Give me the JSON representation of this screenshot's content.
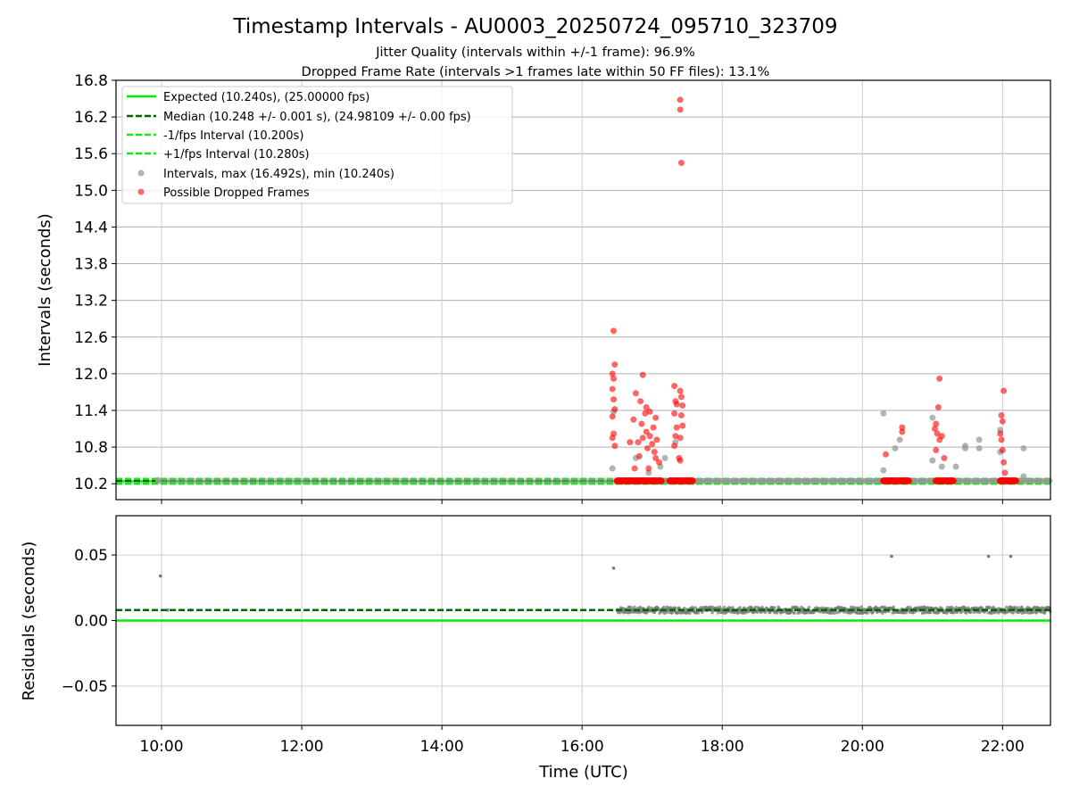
{
  "figure": {
    "title": "Timestamp Intervals - AU0003_20250724_095710_323709",
    "subtitle_1": "Jitter Quality (intervals within +/-1 frame): 96.9%",
    "subtitle_2": "Dropped Frame Rate (intervals >1 frames late within 50 FF files): 13.1%"
  },
  "colors": {
    "expected": "#00ee00",
    "median": "#006400",
    "bounds": "#22dd22",
    "intervals": "#999999",
    "dropped": "#ff0000",
    "residuals": "#777777",
    "grid": "#b0b0b0"
  },
  "chart_data": [
    {
      "type": "scatter",
      "panel": "top",
      "ylabel": "Intervals (seconds)",
      "xlabel": "",
      "xlim": [
        "09:21",
        "22:41"
      ],
      "ylim": [
        9.94,
        16.8
      ],
      "yticks": [
        10.2,
        10.8,
        11.4,
        12.0,
        12.6,
        13.2,
        13.8,
        14.4,
        15.0,
        15.6,
        16.2,
        16.8
      ],
      "ytick_labels": [
        "10.2",
        "10.8",
        "11.4",
        "12.0",
        "12.6",
        "13.2",
        "13.8",
        "14.4",
        "15.0",
        "15.6",
        "16.2",
        "16.8"
      ],
      "xticks": [
        "10:00",
        "12:00",
        "14:00",
        "16:00",
        "18:00",
        "20:00",
        "22:00"
      ],
      "grid": true,
      "legend_position": "top-left",
      "legend": [
        "Expected (10.240s), (25.00000 fps)",
        "Median (10.248 +/- 0.001 s), (24.98109 +/- 0.00 fps)",
        "-1/fps Interval (10.200s)",
        "+1/fps Interval (10.280s)",
        "Intervals, max (16.492s), min (10.240s)",
        "Possible Dropped Frames"
      ],
      "lines": [
        {
          "name": "Expected",
          "y": 10.24,
          "style": "solid"
        },
        {
          "name": "Median",
          "y": 10.248,
          "style": "dashed"
        },
        {
          "name": "-1/fps Interval",
          "y": 10.2,
          "style": "dashed"
        },
        {
          "name": "+1/fps Interval",
          "y": 10.28,
          "style": "dashed"
        }
      ],
      "baseline_series": {
        "name": "Intervals",
        "value": 10.248,
        "ranges": [
          [
            "09:57",
            "16:30"
          ],
          [
            "16:30",
            "22:41"
          ]
        ]
      },
      "dropped_baseline_ranges": [
        [
          "16:30",
          "17:08"
        ],
        [
          "17:15",
          "17:35"
        ],
        [
          "20:18",
          "20:40"
        ],
        [
          "21:03",
          "21:18"
        ],
        [
          "21:58",
          "22:12"
        ]
      ],
      "intervals": [
        [
          "09:57",
          10.26
        ],
        [
          "16:26",
          10.45
        ],
        [
          "16:27",
          11.38
        ],
        [
          "16:46",
          10.62
        ],
        [
          "16:57",
          10.38
        ],
        [
          "17:07",
          10.48
        ],
        [
          "17:11",
          10.62
        ],
        [
          "17:20",
          10.88
        ],
        [
          "20:18",
          11.35
        ],
        [
          "20:18",
          10.42
        ],
        [
          "20:28",
          10.78
        ],
        [
          "20:32",
          10.92
        ],
        [
          "21:00",
          11.28
        ],
        [
          "21:00",
          10.58
        ],
        [
          "21:08",
          10.48
        ],
        [
          "21:20",
          10.48
        ],
        [
          "21:28",
          10.82
        ],
        [
          "21:28",
          10.78
        ],
        [
          "21:40",
          10.92
        ],
        [
          "21:40",
          10.78
        ],
        [
          "21:58",
          11.08
        ],
        [
          "21:58",
          10.72
        ],
        [
          "22:18",
          10.78
        ],
        [
          "22:18",
          10.32
        ]
      ],
      "dropped": [
        [
          "16:27",
          12.7
        ],
        [
          "16:26",
          12.0
        ],
        [
          "16:27",
          11.92
        ],
        [
          "16:28",
          12.15
        ],
        [
          "16:26",
          11.75
        ],
        [
          "16:27",
          11.58
        ],
        [
          "16:28",
          11.42
        ],
        [
          "16:26",
          11.3
        ],
        [
          "16:27",
          11.02
        ],
        [
          "16:26",
          10.95
        ],
        [
          "16:28",
          10.82
        ],
        [
          "16:41",
          10.88
        ],
        [
          "16:44",
          11.25
        ],
        [
          "16:46",
          11.68
        ],
        [
          "16:48",
          10.88
        ],
        [
          "16:50",
          11.55
        ],
        [
          "16:51",
          11.18
        ],
        [
          "16:52",
          10.95
        ],
        [
          "16:54",
          11.35
        ],
        [
          "16:55",
          11.45
        ],
        [
          "16:55",
          11.05
        ],
        [
          "16:56",
          10.78
        ],
        [
          "16:58",
          11.38
        ],
        [
          "16:58",
          10.98
        ],
        [
          "17:00",
          10.85
        ],
        [
          "17:01",
          11.12
        ],
        [
          "17:02",
          10.72
        ],
        [
          "17:03",
          11.28
        ],
        [
          "17:04",
          10.92
        ],
        [
          "17:06",
          10.55
        ],
        [
          "16:52",
          11.98
        ],
        [
          "16:57",
          10.45
        ],
        [
          "16:45",
          10.45
        ],
        [
          "17:03",
          10.62
        ],
        [
          "16:49",
          10.65
        ],
        [
          "17:19",
          11.8
        ],
        [
          "17:20",
          11.55
        ],
        [
          "17:19",
          11.35
        ],
        [
          "17:21",
          11.12
        ],
        [
          "17:20",
          10.98
        ],
        [
          "17:19",
          10.82
        ],
        [
          "17:24",
          11.72
        ],
        [
          "17:25",
          11.62
        ],
        [
          "17:26",
          11.48
        ],
        [
          "17:25",
          11.32
        ],
        [
          "17:26",
          11.15
        ],
        [
          "17:24",
          10.95
        ],
        [
          "17:23",
          10.62
        ],
        [
          "17:24",
          10.58
        ],
        [
          "17:21",
          11.5
        ],
        [
          "17:24",
          16.48
        ],
        [
          "17:24",
          16.32
        ],
        [
          "17:25",
          15.45
        ],
        [
          "20:20",
          10.68
        ],
        [
          "20:34",
          11.05
        ],
        [
          "20:34",
          11.12
        ],
        [
          "21:03",
          11.18
        ],
        [
          "21:04",
          11.02
        ],
        [
          "21:06",
          10.92
        ],
        [
          "21:03",
          10.75
        ],
        [
          "21:05",
          11.45
        ],
        [
          "21:06",
          11.92
        ],
        [
          "21:08",
          10.98
        ],
        [
          "21:10",
          10.62
        ],
        [
          "21:02",
          11.1
        ],
        [
          "21:59",
          11.32
        ],
        [
          "22:00",
          11.22
        ],
        [
          "22:01",
          11.72
        ],
        [
          "21:58",
          11.02
        ],
        [
          "21:59",
          10.92
        ],
        [
          "22:00",
          10.75
        ],
        [
          "22:01",
          10.55
        ],
        [
          "22:02",
          10.38
        ]
      ]
    },
    {
      "type": "scatter",
      "panel": "bottom",
      "xlabel": "Time (UTC)",
      "ylabel": "Residuals (seconds)",
      "xlim": [
        "09:21",
        "22:41"
      ],
      "ylim": [
        -0.08,
        0.08
      ],
      "yticks": [
        0.05,
        0.0,
        -0.05
      ],
      "ytick_labels": [
        "0.05",
        "0.00",
        "−0.05"
      ],
      "xticks": [
        "10:00",
        "12:00",
        "14:00",
        "16:00",
        "18:00",
        "20:00",
        "22:00"
      ],
      "xtick_labels": [
        "10:00",
        "12:00",
        "14:00",
        "16:00",
        "18:00",
        "20:00",
        "22:00"
      ],
      "grid": true,
      "lines": [
        {
          "name": "Expected",
          "y": 0.0,
          "style": "solid"
        },
        {
          "name": "Median",
          "y": 0.008,
          "style": "dashed"
        }
      ],
      "residual_band": {
        "start": "16:30",
        "end": "22:41",
        "center": 0.008,
        "spread": 0.003
      },
      "outliers": [
        [
          "09:59",
          0.034
        ],
        [
          "16:27",
          0.04
        ],
        [
          "20:25",
          0.049
        ],
        [
          "21:48",
          0.049
        ],
        [
          "22:07",
          0.049
        ],
        [
          "10:05",
          0.008
        ],
        [
          "10:25",
          0.008
        ]
      ]
    }
  ]
}
